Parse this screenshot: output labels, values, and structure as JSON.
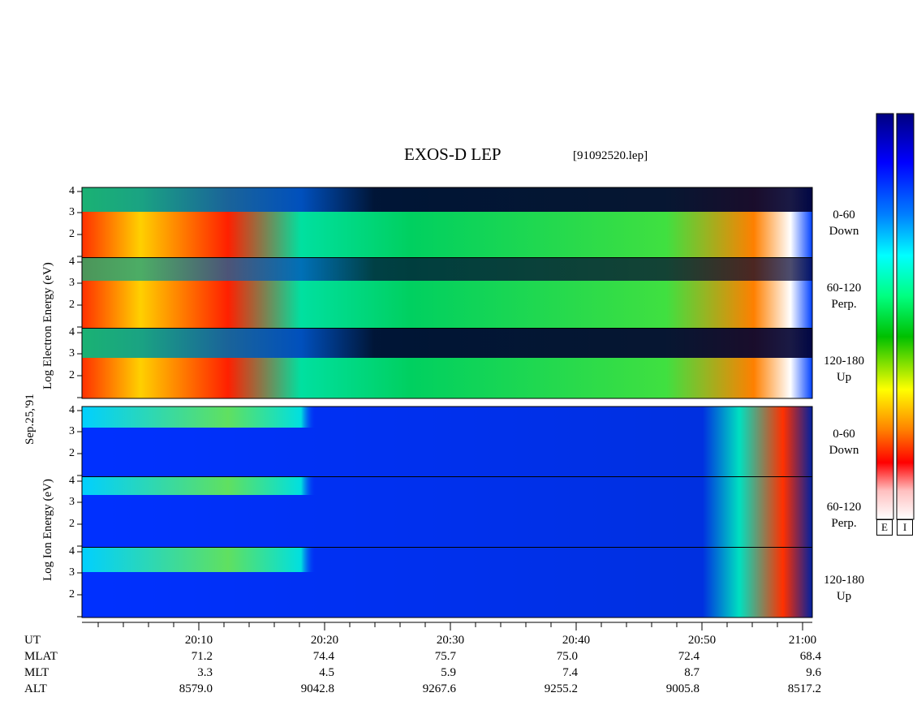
{
  "header": {
    "title": "EXOS-D LEP",
    "filename": "[91092520.lep]"
  },
  "left_labels": {
    "date": "Sep.25,'91",
    "electron_axis": "Log  Electron  Energy (eV)",
    "ion_axis": "Log  Ion  Energy  (eV)"
  },
  "panels": [
    {
      "species": "electron",
      "angle": "0-60",
      "direction": "Down"
    },
    {
      "species": "electron",
      "angle": "60-120",
      "direction": "Perp."
    },
    {
      "species": "electron",
      "angle": "120-180",
      "direction": "Up"
    },
    {
      "species": "ion",
      "angle": "0-60",
      "direction": "Down"
    },
    {
      "species": "ion",
      "angle": "60-120",
      "direction": "Perp."
    },
    {
      "species": "ion",
      "angle": "120-180",
      "direction": "Up"
    }
  ],
  "colorbars": [
    {
      "label": "E"
    },
    {
      "label": "I"
    }
  ],
  "colorscale_colors": [
    "#000080",
    "#0000ff",
    "#0080ff",
    "#00ffff",
    "#00ff80",
    "#00c000",
    "#ffff00",
    "#ff8000",
    "#ff0000",
    "#ffc0c0",
    "#ffffff"
  ],
  "time_axis": {
    "row_labels": {
      "ut": "UT",
      "mlat": "MLAT",
      "mlt": "MLT",
      "alt": "ALT"
    },
    "ticks": [
      {
        "ut": "20:10",
        "mlat": "71.2",
        "mlt": "3.3",
        "alt": "8579.0"
      },
      {
        "ut": "20:20",
        "mlat": "74.4",
        "mlt": "4.5",
        "alt": "9042.8"
      },
      {
        "ut": "20:30",
        "mlat": "75.7",
        "mlt": "5.9",
        "alt": "9267.6"
      },
      {
        "ut": "20:40",
        "mlat": "75.0",
        "mlt": "7.4",
        "alt": "9255.2"
      },
      {
        "ut": "20:50",
        "mlat": "72.4",
        "mlt": "8.7",
        "alt": "9005.8"
      },
      {
        "ut": "21:00",
        "mlat": "68.4",
        "mlt": "9.6",
        "alt": "8517.2"
      }
    ]
  },
  "chart_data": {
    "type": "heatmap",
    "title": "EXOS-D LEP",
    "x_axis": {
      "label": "UT",
      "range": [
        "20:02",
        "21:00"
      ],
      "major_ticks": [
        "20:10",
        "20:20",
        "20:30",
        "20:40",
        "20:50",
        "21:00"
      ]
    },
    "y_axis": {
      "scale": "log10 energy (eV)",
      "range": [
        1,
        4
      ],
      "ticks": [
        "2",
        "3",
        "4"
      ]
    },
    "electron_ylabel": "Log Electron Energy (eV)",
    "ion_ylabel": "Log Ion Energy (eV)",
    "colorbar_labels": [
      "E",
      "I"
    ],
    "panels": [
      "0-60 Down",
      "60-120 Perp.",
      "120-180 Up",
      "0-60 Down",
      "60-120 Perp.",
      "120-180 Up"
    ]
  }
}
